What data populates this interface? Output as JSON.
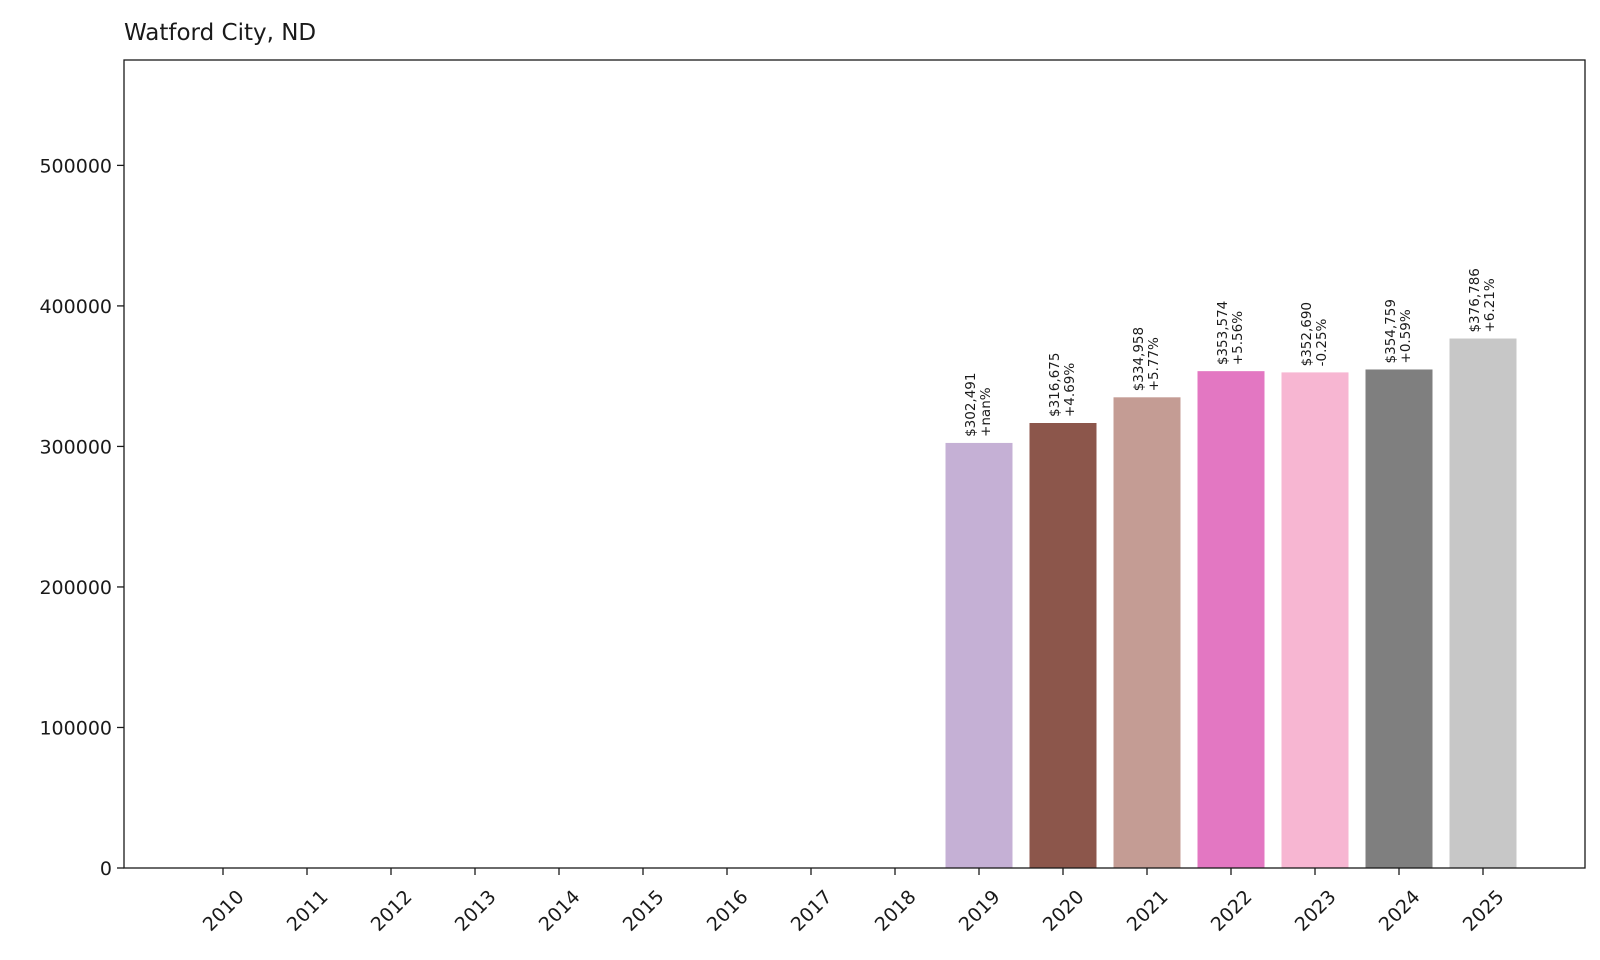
{
  "chart_data": {
    "type": "bar",
    "title": "Watford City, ND",
    "xlabel": "",
    "ylabel": "",
    "ylim": [
      0,
      575000
    ],
    "yticks": [
      0,
      100000,
      200000,
      300000,
      400000,
      500000
    ],
    "grid": false,
    "categories": [
      "2010",
      "2011",
      "2012",
      "2013",
      "2014",
      "2015",
      "2016",
      "2017",
      "2018",
      "2019",
      "2020",
      "2021",
      "2022",
      "2023",
      "2024",
      "2025"
    ],
    "values": [
      0,
      0,
      0,
      0,
      0,
      0,
      0,
      0,
      0,
      302491,
      316675,
      334958,
      353574,
      352690,
      354759,
      376786
    ],
    "value_labels": [
      "",
      "",
      "",
      "",
      "",
      "",
      "",
      "",
      "",
      "$302,491",
      "$316,675",
      "$334,958",
      "$353,574",
      "$352,690",
      "$354,759",
      "$376,786"
    ],
    "change_labels": [
      "",
      "",
      "",
      "",
      "",
      "",
      "",
      "",
      "",
      "+nan%",
      "+4.69%",
      "+5.77%",
      "+5.56%",
      "-0.25%",
      "+0.59%",
      "+6.21%"
    ],
    "colors": [
      "#1f77b4",
      "#ff7f0e",
      "#2ca02c",
      "#d62728",
      "#9467bd",
      "#8c564b",
      "#e377c2",
      "#7f7f7f",
      "#bcbd22",
      "#c5b0d5",
      "#8c564b",
      "#c49c94",
      "#e377c2",
      "#f7b6d2",
      "#7f7f7f",
      "#c7c7c7"
    ]
  }
}
